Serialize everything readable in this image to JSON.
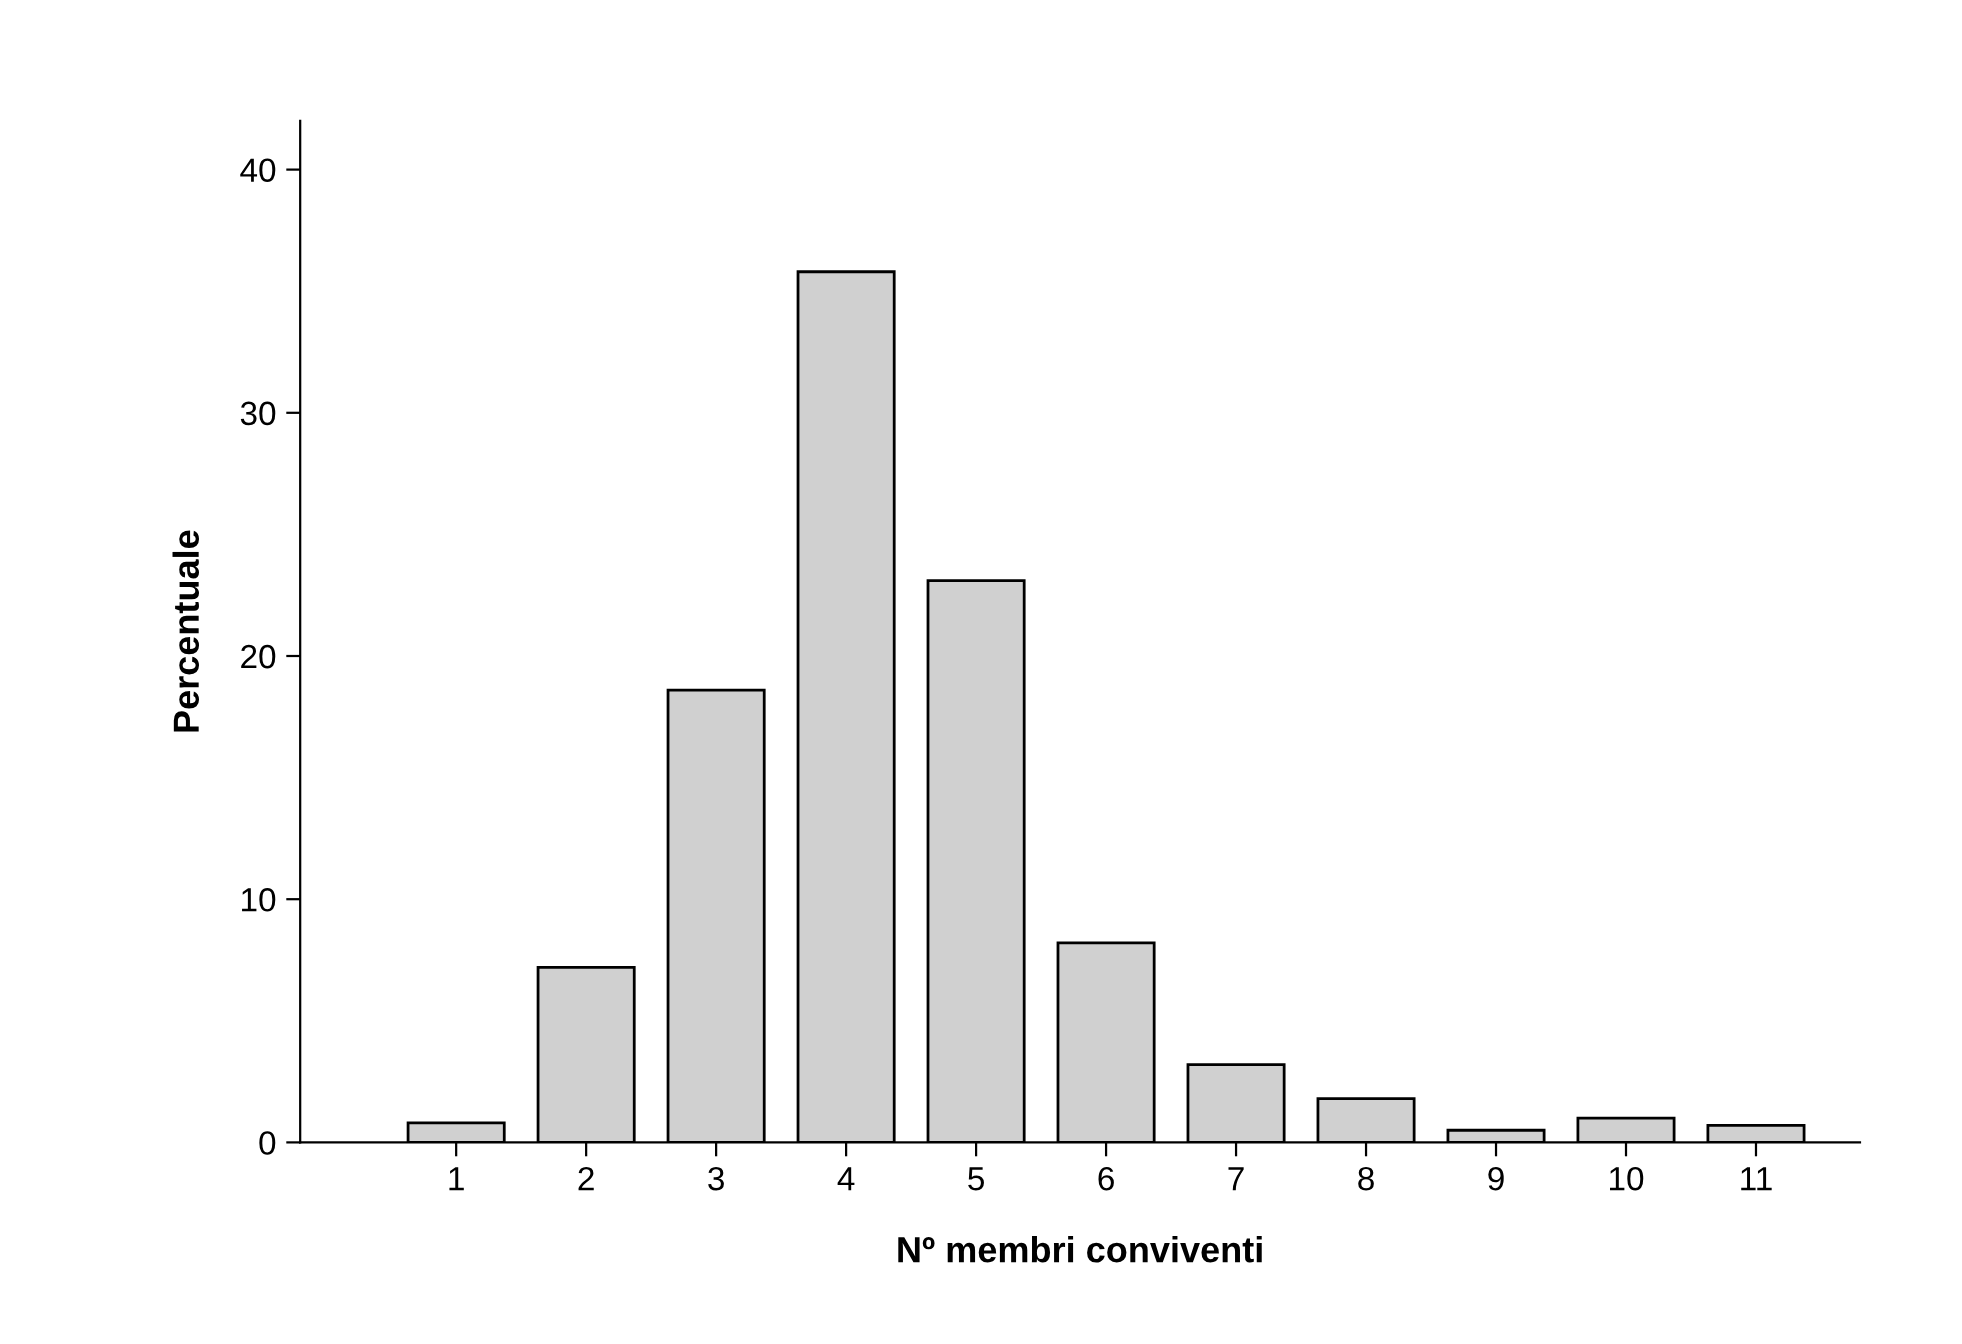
{
  "chart_data": {
    "type": "bar",
    "xlabel": "Nº membri conviventi",
    "ylabel": "Percentuale",
    "categories": [
      "1",
      "2",
      "3",
      "4",
      "5",
      "6",
      "7",
      "8",
      "9",
      "10",
      "11"
    ],
    "values": [
      0.8,
      7.2,
      18.6,
      35.8,
      23.1,
      8.2,
      3.2,
      1.8,
      0.5,
      1.0,
      0.7
    ],
    "color": "#d0d0d0",
    "ylim": [
      0,
      42
    ],
    "yticks": [
      0,
      10,
      20,
      30,
      40
    ],
    "grid": false,
    "legend": false
  }
}
